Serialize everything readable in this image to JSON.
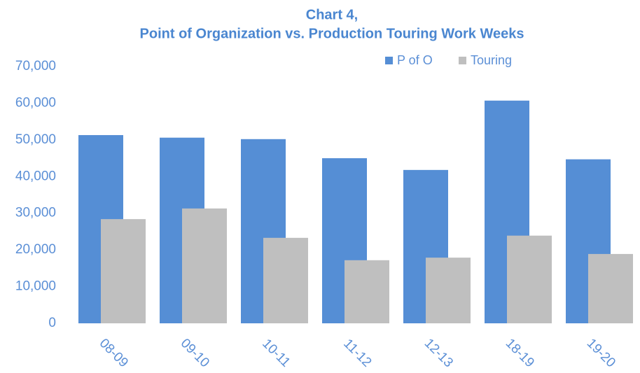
{
  "chart_data": {
    "type": "bar",
    "title": "Chart 4,",
    "subtitle": "Point of Organization vs. Production Touring Work Weeks",
    "categories": [
      "08-09",
      "09-10",
      "10-11",
      "11-12",
      "12-13",
      "18-19",
      "19-20"
    ],
    "series": [
      {
        "name": "P of O",
        "color": "#558ed5",
        "values": [
          51300,
          50600,
          50200,
          45000,
          41800,
          60700,
          44700
        ]
      },
      {
        "name": "Touring",
        "color": "#bfbfbf",
        "values": [
          28400,
          31300,
          23300,
          17200,
          17900,
          23900,
          18900
        ]
      }
    ],
    "ylim": [
      0,
      70000
    ],
    "yticks": [
      0,
      {
        "value": 10000,
        "label": "10,000"
      },
      {
        "value": 20000,
        "label": "20,000"
      },
      {
        "value": 30000,
        "label": "30,000"
      },
      {
        "value": 40000,
        "label": "40,000"
      },
      {
        "value": 50000,
        "label": "50,000"
      },
      {
        "value": 60000,
        "label": "60,000"
      },
      {
        "value": 70000,
        "label": "70,000"
      }
    ],
    "legend": "top"
  }
}
